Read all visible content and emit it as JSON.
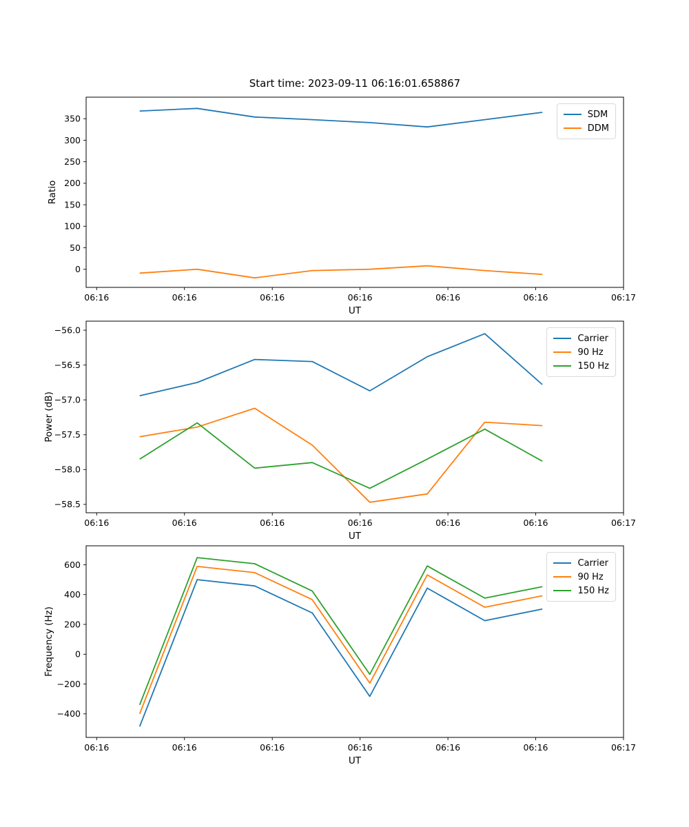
{
  "title": "Start time: 2023-09-11 06:16:01.658867",
  "colors": {
    "blue": "#1f77b4",
    "orange": "#ff7f0e",
    "green": "#2ca02c",
    "frame": "#000000",
    "background": "#ffffff"
  },
  "x_axis": {
    "label": "UT",
    "tick_labels": [
      "06:16",
      "06:16",
      "06:16",
      "06:16",
      "06:16",
      "06:16",
      "06:17"
    ],
    "tick_seconds": [
      0,
      10,
      20,
      30,
      40,
      50,
      60
    ],
    "xlim_seconds": [
      -1.2,
      60.0
    ]
  },
  "x_seconds": [
    4.9,
    11.45,
    18.0,
    24.55,
    31.1,
    37.65,
    44.2,
    50.75
  ],
  "chart_data": [
    {
      "type": "line",
      "title": "",
      "ylabel": "Ratio",
      "xlabel": "UT",
      "grid": false,
      "legend_position": "upper right",
      "ylim": [
        -42.1,
        400.2
      ],
      "yticks": [
        0,
        50,
        100,
        150,
        200,
        250,
        300,
        350
      ],
      "ytick_labels": [
        "0",
        "50",
        "100",
        "150",
        "200",
        "250",
        "300",
        "350"
      ],
      "xtick_labels": [
        "06:16",
        "06:16",
        "06:16",
        "06:16",
        "06:16",
        "06:16",
        "06:17"
      ],
      "series": [
        {
          "name": "SDM",
          "color": "#1f77b4",
          "values": [
            368,
            374,
            354,
            348,
            341,
            331,
            348,
            365
          ]
        },
        {
          "name": "DDM",
          "color": "#ff7f0e",
          "values": [
            -9,
            0,
            -20,
            -3,
            0,
            8,
            -3,
            -12
          ]
        }
      ]
    },
    {
      "type": "line",
      "title": "",
      "ylabel": "Power (dB)",
      "xlabel": "UT",
      "grid": false,
      "legend_position": "upper right",
      "ylim": [
        -58.62,
        -55.87
      ],
      "yticks": [
        -56.0,
        -56.5,
        -57.0,
        -57.5,
        -58.0,
        -58.5
      ],
      "ytick_labels": [
        "−56.0",
        "−56.5",
        "−57.0",
        "−57.5",
        "−58.0",
        "−58.5"
      ],
      "xtick_labels": [
        "06:16",
        "06:16",
        "06:16",
        "06:16",
        "06:16",
        "06:16",
        "06:17"
      ],
      "series": [
        {
          "name": "Carrier",
          "color": "#1f77b4",
          "values": [
            -56.94,
            -56.75,
            -56.42,
            -56.45,
            -56.87,
            -56.38,
            -56.05,
            -56.78
          ]
        },
        {
          "name": "90 Hz",
          "color": "#ff7f0e",
          "values": [
            -57.53,
            -57.39,
            -57.12,
            -57.65,
            -58.47,
            -58.35,
            -57.32,
            -57.37
          ]
        },
        {
          "name": "150 Hz",
          "color": "#2ca02c",
          "values": [
            -57.85,
            -57.33,
            -57.98,
            -57.9,
            -58.27,
            -57.85,
            -57.42,
            -57.88
          ]
        }
      ]
    },
    {
      "type": "line",
      "title": "",
      "ylabel": "Frequency (Hz)",
      "xlabel": "UT",
      "grid": false,
      "legend_position": "upper right",
      "ylim": [
        -558,
        727
      ],
      "yticks": [
        600,
        400,
        200,
        0,
        -200,
        -400
      ],
      "ytick_labels": [
        "600",
        "400",
        "200",
        "0",
        "−200",
        "−400"
      ],
      "xtick_labels": [
        "06:16",
        "06:16",
        "06:16",
        "06:16",
        "06:16",
        "06:16",
        "06:17"
      ],
      "series": [
        {
          "name": "Carrier",
          "color": "#1f77b4",
          "values": [
            -485,
            500,
            458,
            277,
            -283,
            443,
            225,
            303
          ]
        },
        {
          "name": "90 Hz",
          "color": "#ff7f0e",
          "values": [
            -400,
            589,
            547,
            366,
            -194,
            532,
            315,
            392
          ]
        },
        {
          "name": "150 Hz",
          "color": "#2ca02c",
          "values": [
            -340,
            648,
            607,
            424,
            -135,
            592,
            376,
            453
          ]
        }
      ]
    }
  ]
}
